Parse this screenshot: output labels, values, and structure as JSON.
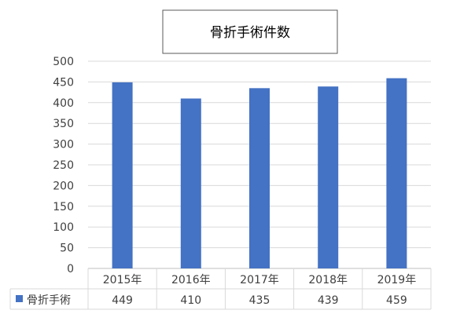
{
  "chart_data": {
    "type": "bar",
    "title": "骨折手術件数",
    "categories": [
      "2015年",
      "2016年",
      "2017年",
      "2018年",
      "2019年"
    ],
    "series": [
      {
        "name": "骨折手術",
        "values": [
          449,
          410,
          435,
          439,
          459
        ],
        "color": "#4472c4"
      }
    ],
    "ylim": [
      0,
      500
    ],
    "y_ticks": [
      0,
      50,
      100,
      150,
      200,
      250,
      300,
      350,
      400,
      450,
      500
    ],
    "grid": true,
    "legend": "data-table-left",
    "data_table": true
  }
}
